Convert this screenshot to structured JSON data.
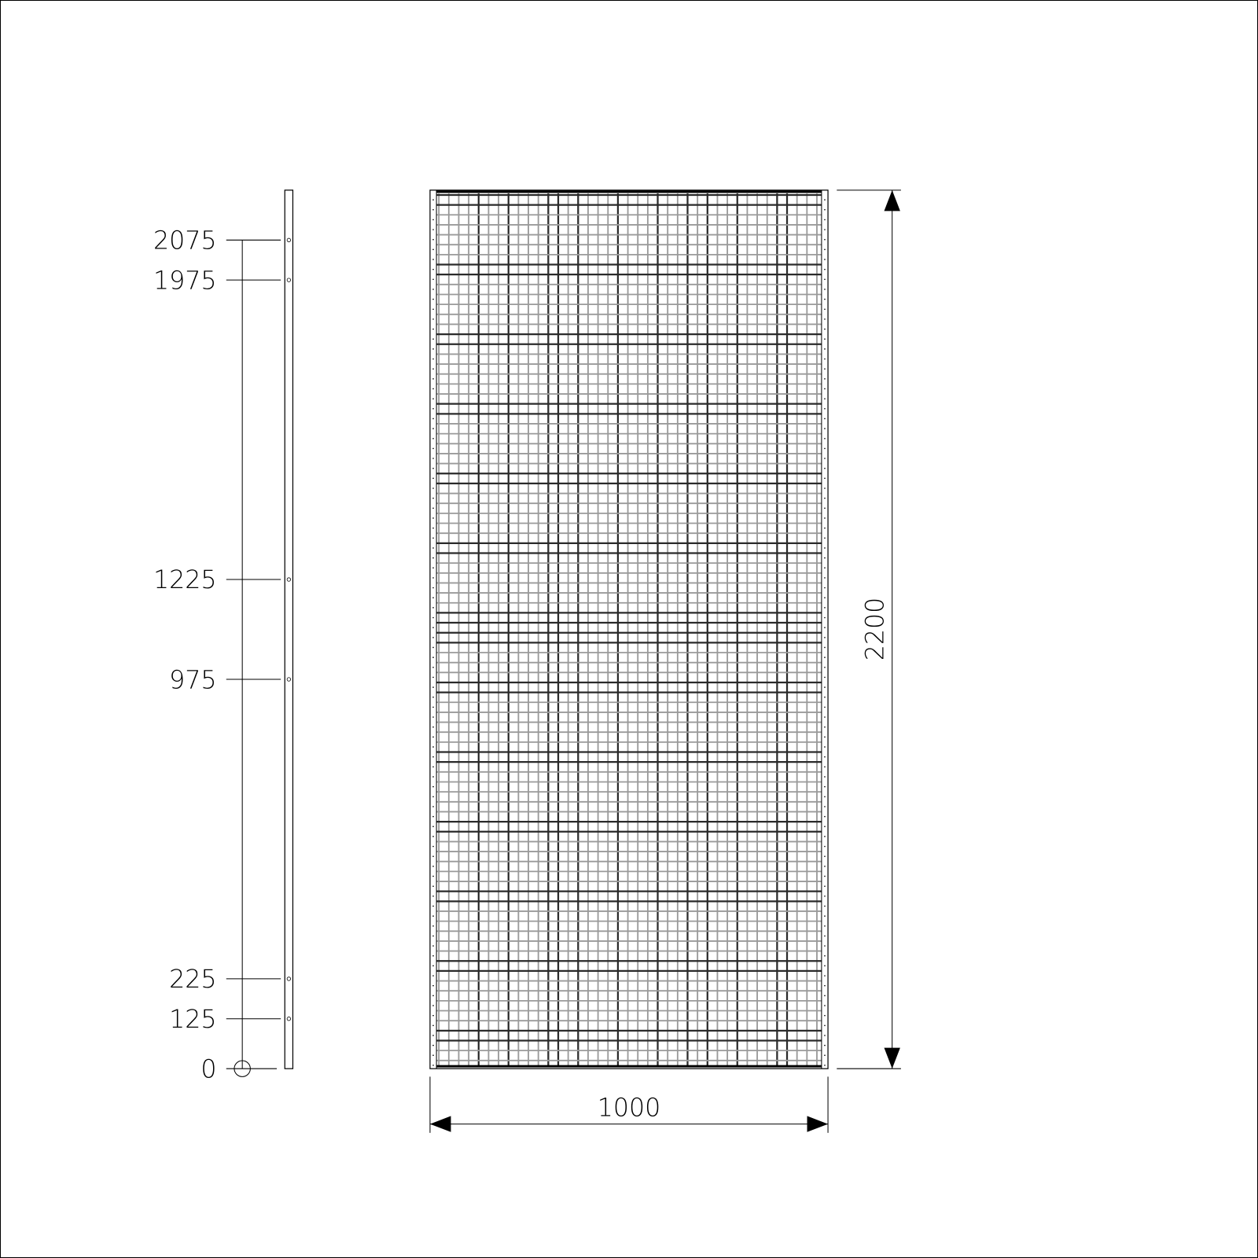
{
  "side_view": {
    "hole_labels": [
      "2075",
      "1975",
      "1225",
      "975",
      "225",
      "125",
      "0"
    ],
    "hole_values": [
      2075,
      1975,
      1225,
      975,
      225,
      125,
      0
    ]
  },
  "front_view": {
    "width_label": "1000",
    "height_label": "2200"
  },
  "colors": {
    "line": "#000000",
    "mesh_light": "#9a9a9a",
    "mesh_dark": "#2a2a2a"
  }
}
